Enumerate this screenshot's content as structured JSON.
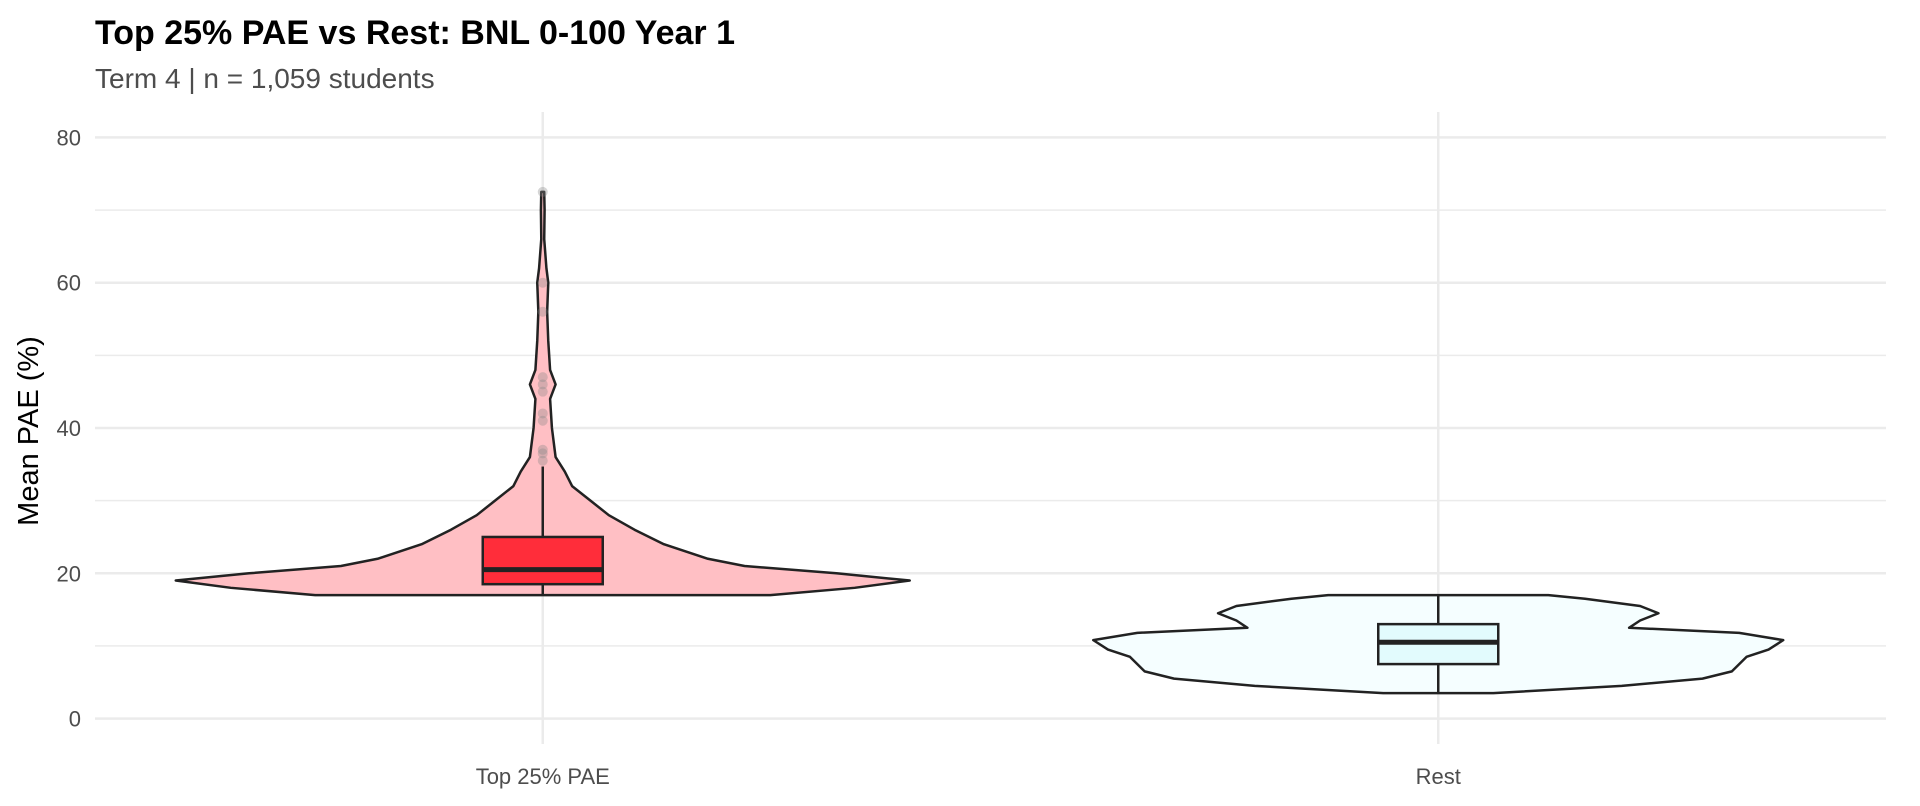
{
  "chart_data": {
    "type": "violin",
    "title": "Top 25% PAE vs Rest: BNL 0-100 Year 1",
    "subtitle": "Term 4 | n = 1,059 students",
    "y_label": "Mean PAE (%)",
    "categories": [
      "Top 25% PAE",
      "Rest"
    ],
    "ylim": [
      -3.5,
      83.5
    ],
    "yticks": [
      0,
      20,
      40,
      60,
      80
    ],
    "minor_yticks": [
      10,
      30,
      50,
      70
    ],
    "grid": true,
    "series": [
      {
        "name": "Top 25% PAE",
        "violin_color": "#ffbfc4",
        "box_color": "#ff2d3a",
        "min": 17,
        "q1": 18.5,
        "median": 20.5,
        "q3": 25,
        "max": 34.7,
        "outliers": [
          35.5,
          36.5,
          37,
          41,
          42,
          45,
          46,
          47,
          56,
          60,
          72.5
        ],
        "violin_y": [
          17,
          18,
          19,
          20,
          21,
          22,
          24,
          26,
          28,
          30,
          32,
          34,
          36,
          40,
          44,
          46,
          48,
          52,
          56,
          60,
          62,
          66,
          70,
          72.5
        ],
        "violin_density": [
          0.62,
          0.85,
          1.0,
          0.8,
          0.55,
          0.45,
          0.33,
          0.25,
          0.18,
          0.13,
          0.08,
          0.06,
          0.035,
          0.025,
          0.02,
          0.035,
          0.02,
          0.015,
          0.012,
          0.015,
          0.01,
          0.004,
          0.005,
          0.004
        ]
      },
      {
        "name": "Rest",
        "violin_color": "#f5feff",
        "box_color": "#e2fbfd",
        "min": 3.5,
        "q1": 7.5,
        "median": 10.5,
        "q3": 13,
        "max": 17,
        "outliers": [],
        "violin_y": [
          3.5,
          4.5,
          5.5,
          6.5,
          7.5,
          8.5,
          9.5,
          10.8,
          11.8,
          12.5,
          13.5,
          14.5,
          15.5,
          16.5,
          17
        ],
        "violin_density": [
          0.15,
          0.5,
          0.72,
          0.8,
          0.82,
          0.84,
          0.9,
          0.94,
          0.82,
          0.52,
          0.55,
          0.6,
          0.55,
          0.4,
          0.3
        ]
      }
    ]
  }
}
